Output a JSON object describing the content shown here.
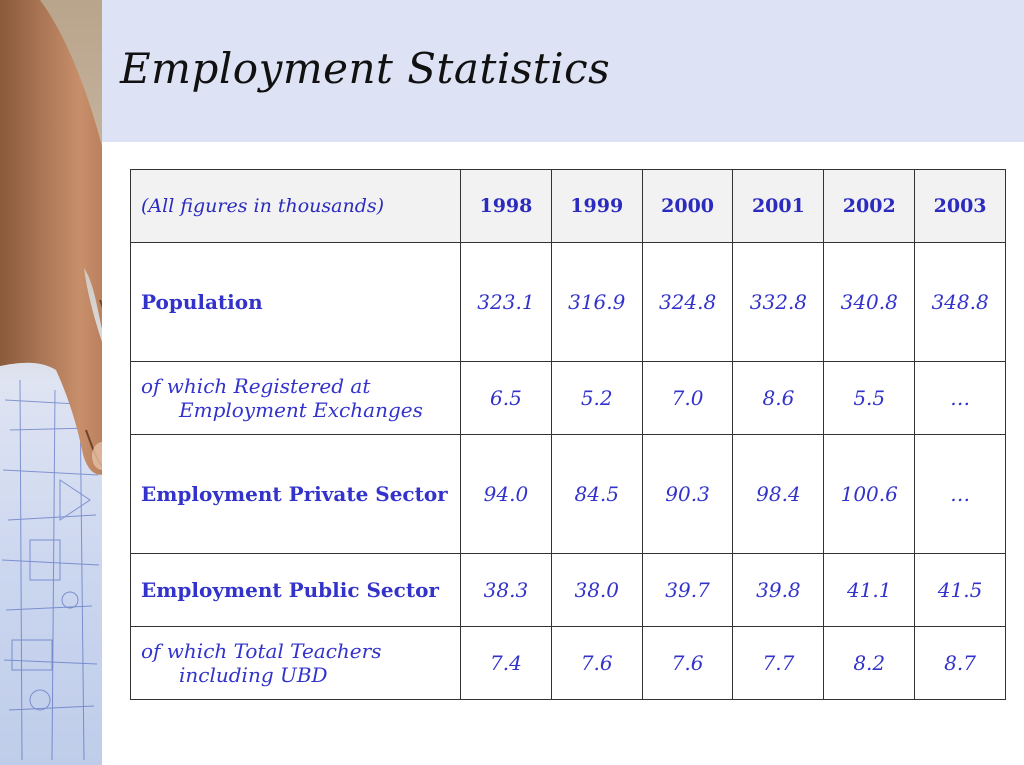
{
  "title": "Employment Statistics",
  "table": {
    "note": "(All figures in thousands)",
    "years": [
      "1998",
      "1999",
      "2000",
      "2001",
      "2002",
      "2003"
    ],
    "rows": [
      {
        "label_line1": "Population",
        "label_line2": "",
        "values": [
          "323.1",
          "316.9",
          "324.8",
          "332.8",
          "340.8",
          "348.8"
        ]
      },
      {
        "label_line1": "of which Registered at",
        "label_line2": "Employment Exchanges",
        "values": [
          "6.5",
          "5.2",
          "7.0",
          "8.6",
          "5.5",
          "…"
        ]
      },
      {
        "label_line1": "Employment Private Sector",
        "label_line2": "",
        "values": [
          "94.0",
          "84.5",
          "90.3",
          "98.4",
          "100.6",
          "…"
        ]
      },
      {
        "label_line1": "Employment Public Sector",
        "label_line2": "",
        "values": [
          "38.3",
          "38.0",
          "39.7",
          "39.8",
          "41.1",
          "41.5"
        ]
      },
      {
        "label_line1": "of which Total Teachers",
        "label_line2": "including UBD",
        "values": [
          "7.4",
          "7.6",
          "7.6",
          "7.7",
          "8.2",
          "8.7"
        ]
      }
    ]
  },
  "colors": {
    "text_blue": "#3333cc",
    "title_band": "#dde3f4",
    "header_bg": "#f2f2f2"
  }
}
